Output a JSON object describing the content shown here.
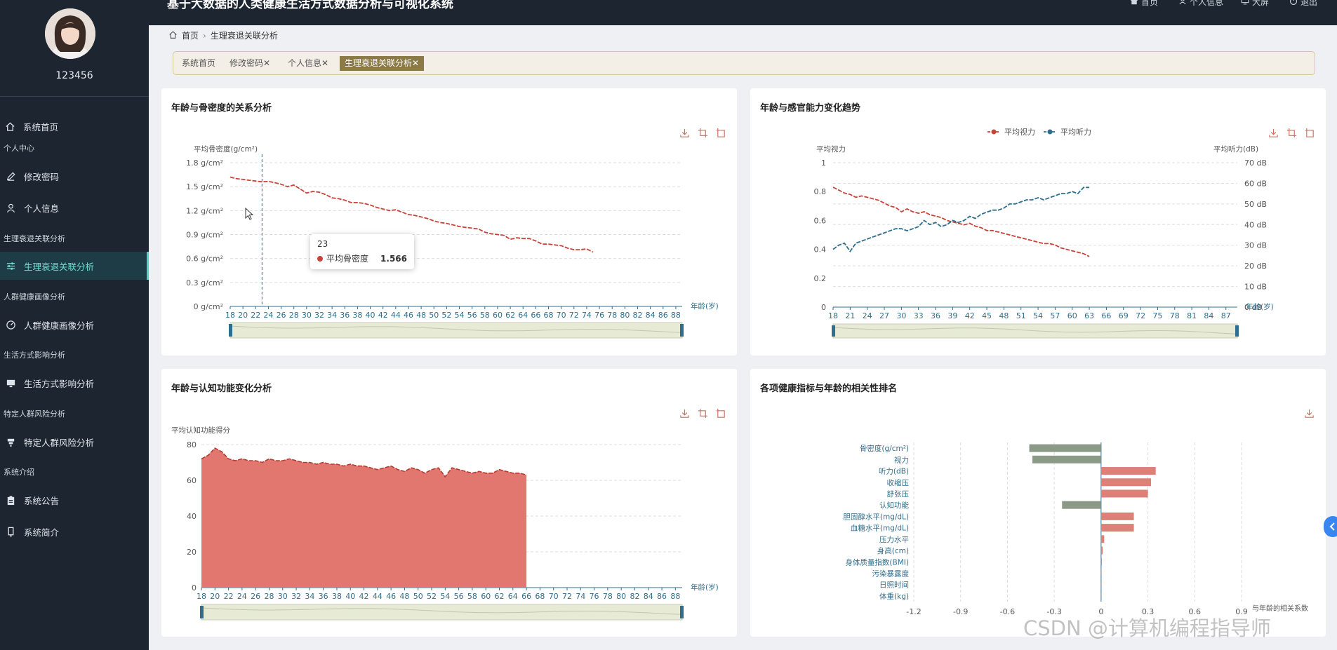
{
  "header": {
    "system_title": "基于大数据的人类健康生活方式数据分析与可视化系统",
    "links": [
      {
        "label": "首页",
        "icon": "home-icon"
      },
      {
        "label": "个人信息",
        "icon": "user-icon"
      },
      {
        "label": "大屏",
        "icon": "monitor-icon"
      },
      {
        "label": "退出",
        "icon": "power-icon"
      }
    ]
  },
  "sidebar": {
    "username": "123456",
    "items": [
      {
        "label": "系统首页",
        "icon": "home-icon"
      },
      {
        "label": "修改密码",
        "icon": "edit-icon"
      },
      {
        "label": "个人信息",
        "icon": "user-icon"
      },
      {
        "label": "生理衰退关联分析",
        "icon": "sliders-icon",
        "active": true
      },
      {
        "label": "人群健康画像分析",
        "icon": "gauge-icon"
      },
      {
        "label": "生活方式影响分析",
        "icon": "monitor-icon"
      },
      {
        "label": "特定人群风险分析",
        "icon": "bar-icon"
      },
      {
        "label": "系统公告",
        "icon": "clipboard-icon"
      },
      {
        "label": "系统简介",
        "icon": "phone-icon"
      }
    ],
    "categories": [
      "个人中心",
      "生理衰退关联分析",
      "人群健康画像分析",
      "生活方式影响分析",
      "特定人群风险分析",
      "系统介绍"
    ]
  },
  "breadcrumb": {
    "home": "首页",
    "current": "生理衰退关联分析"
  },
  "tags": [
    {
      "label": "系统首页"
    },
    {
      "label": "修改密码",
      "close": "✕"
    },
    {
      "label": "个人信息",
      "close": "✕"
    },
    {
      "label": "生理衰退关联分析",
      "close": "✕",
      "active": true
    }
  ],
  "panels": {
    "bone": {
      "title": "年龄与骨密度的关系分析"
    },
    "sense": {
      "title": "年龄与感官能力变化趋势"
    },
    "cognition": {
      "title": "年龄与认知功能变化分析"
    },
    "corr": {
      "title": "各项健康指标与年龄的相关性排名"
    }
  },
  "tooltip": {
    "header": "23",
    "label": "平均骨密度",
    "value": "1.566"
  },
  "watermark": "CSDN @计算机编程指导师",
  "colors": {
    "red": "#c8433a",
    "teal": "#2f6e8c",
    "area": "#e07067",
    "gray_bar": "#8a9a86",
    "pink_bar": "#dd8077",
    "accent": "#4fd6c4",
    "tag_active": "#8b7a45"
  },
  "chart_data": [
    {
      "type": "line",
      "title": "年龄与骨密度的关系分析",
      "ylabel": "平均骨密度(g/cm²)",
      "xlabel": "年龄(岁)",
      "ylim": [
        0,
        1.8
      ],
      "yticks": [
        "0 g/cm²",
        "0.3 g/cm²",
        "0.6 g/cm²",
        "0.9 g/cm²",
        "1.2 g/cm²",
        "1.5 g/cm²",
        "1.8 g/cm²"
      ],
      "x_range": [
        18,
        89
      ],
      "xticks": [
        18,
        20,
        22,
        24,
        26,
        28,
        30,
        32,
        34,
        36,
        38,
        40,
        42,
        44,
        46,
        48,
        50,
        52,
        54,
        56,
        58,
        60,
        62,
        64,
        66,
        68,
        70,
        72,
        74,
        76,
        78,
        80,
        82,
        84,
        86,
        88
      ],
      "series": [
        {
          "name": "平均骨密度",
          "x_start": 18,
          "values": [
            1.62,
            1.6,
            1.59,
            1.58,
            1.57,
            1.56,
            1.566,
            1.55,
            1.53,
            1.5,
            1.52,
            1.47,
            1.42,
            1.44,
            1.43,
            1.4,
            1.36,
            1.35,
            1.33,
            1.3,
            1.3,
            1.29,
            1.27,
            1.24,
            1.22,
            1.2,
            1.21,
            1.18,
            1.15,
            1.14,
            1.12,
            1.1,
            1.07,
            1.05,
            1.04,
            1.02,
            1.0,
            0.99,
            0.98,
            0.97,
            0.93,
            0.91,
            0.9,
            0.89,
            0.84,
            0.86,
            0.85,
            0.85,
            0.82,
            0.78,
            0.78,
            0.77,
            0.76,
            0.73,
            0.71,
            0.71,
            0.72,
            0.68
          ]
        }
      ]
    },
    {
      "type": "line",
      "title": "年龄与感官能力变化趋势",
      "legend": [
        "平均视力",
        "平均听力"
      ],
      "legend_position": "top-center",
      "xlabel": "年龄(岁)",
      "y_left": {
        "label": "平均视力",
        "ylim": [
          0,
          1
        ],
        "ticks": [
          "0",
          "0.2",
          "0.4",
          "0.6",
          "0.8",
          "1"
        ]
      },
      "y_right": {
        "label": "平均听力(dB)",
        "ylim": [
          0,
          70
        ],
        "ticks": [
          "0 dB",
          "10 dB",
          "20 dB",
          "30 dB",
          "40 dB",
          "50 dB",
          "60 dB",
          "70 dB"
        ]
      },
      "x_range": [
        18,
        89
      ],
      "xticks": [
        18,
        21,
        24,
        27,
        30,
        33,
        36,
        39,
        42,
        45,
        48,
        51,
        54,
        57,
        60,
        63,
        66,
        69,
        72,
        75,
        78,
        81,
        84,
        87
      ],
      "series": [
        {
          "name": "平均视力",
          "axis": "left",
          "x_start": 18,
          "values": [
            0.83,
            0.81,
            0.79,
            0.78,
            0.76,
            0.77,
            0.76,
            0.75,
            0.74,
            0.72,
            0.7,
            0.69,
            0.66,
            0.68,
            0.66,
            0.65,
            0.66,
            0.64,
            0.63,
            0.62,
            0.6,
            0.59,
            0.58,
            0.57,
            0.58,
            0.56,
            0.55,
            0.53,
            0.53,
            0.52,
            0.51,
            0.5,
            0.49,
            0.48,
            0.47,
            0.46,
            0.45,
            0.44,
            0.44,
            0.43,
            0.41,
            0.4,
            0.39,
            0.38,
            0.37,
            0.35
          ]
        },
        {
          "name": "平均听力",
          "axis": "right",
          "x_start": 18,
          "values": [
            28,
            30,
            31,
            27,
            31,
            32,
            33,
            34,
            35,
            36,
            37,
            38,
            38,
            37,
            38,
            39,
            42,
            40,
            41,
            39,
            40,
            42,
            41,
            42,
            44,
            43,
            45,
            46,
            47,
            47,
            48,
            50,
            50,
            51,
            52,
            52,
            53,
            52,
            53,
            54,
            55,
            55,
            56,
            55,
            58,
            58
          ]
        }
      ]
    },
    {
      "type": "area",
      "title": "年龄与认知功能变化分析",
      "ylabel": "平均认知功能得分",
      "xlabel": "年龄(岁)",
      "ylim": [
        0,
        80
      ],
      "yticks": [
        "0",
        "20",
        "40",
        "60",
        "80"
      ],
      "x_range": [
        18,
        89
      ],
      "xticks": [
        18,
        20,
        22,
        24,
        26,
        28,
        30,
        32,
        34,
        36,
        38,
        40,
        42,
        44,
        46,
        48,
        50,
        52,
        54,
        56,
        58,
        60,
        62,
        64,
        66,
        68,
        70,
        72,
        74,
        76,
        78,
        80,
        82,
        84,
        86,
        88
      ],
      "series": [
        {
          "name": "平均认知功能得分",
          "x_start": 18,
          "values": [
            72,
            74,
            78,
            76,
            72,
            71,
            72,
            71,
            71,
            70,
            72,
            71,
            71,
            72,
            71,
            70,
            70,
            69,
            70,
            69,
            69,
            68,
            69,
            68,
            68,
            67,
            66,
            67,
            68,
            66,
            65,
            67,
            66,
            64,
            66,
            67,
            62,
            67,
            66,
            65,
            64,
            65,
            64,
            64,
            66,
            65,
            64,
            64,
            63
          ]
        }
      ]
    },
    {
      "type": "bar",
      "orientation": "horizontal",
      "title": "各项健康指标与年龄的相关性排名",
      "xlabel": "与年龄的相关系数",
      "xlim": [
        -1.2,
        0.9
      ],
      "xticks": [
        "-1.2",
        "-0.9",
        "-0.6",
        "-0.3",
        "0",
        "0.3",
        "0.6",
        "0.9"
      ],
      "categories": [
        "骨密度(g/cm²)",
        "视力",
        "听力(dB)",
        "收缩压",
        "舒张压",
        "认知功能",
        "胆固醇水平(mg/dL)",
        "血糖水平(mg/dL)",
        "压力水平",
        "身高(cm)",
        "身体质量指数(BMI)",
        "污染暴露度",
        "日照时间",
        "体重(kg)"
      ],
      "values": [
        -0.46,
        -0.44,
        0.35,
        0.32,
        0.3,
        -0.25,
        0.21,
        0.21,
        0.02,
        0.01,
        0.005,
        0.003,
        0.002,
        0.001
      ]
    }
  ]
}
